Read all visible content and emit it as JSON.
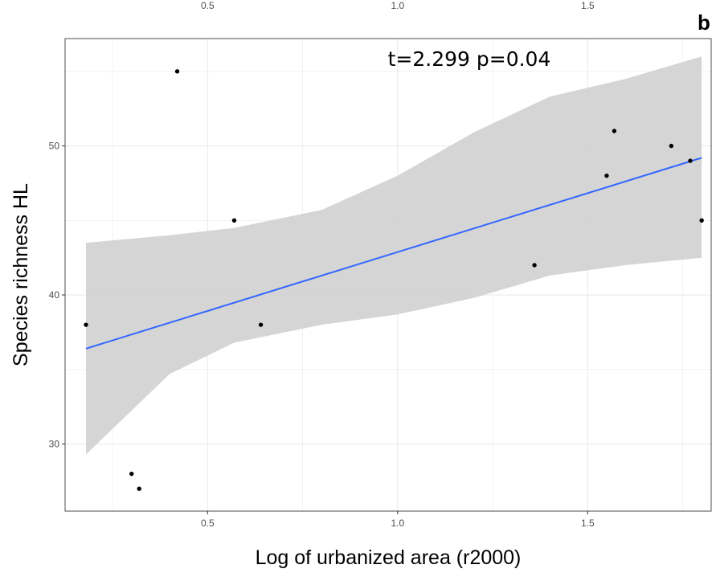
{
  "chart_data": {
    "type": "scatter",
    "panel_label": "b",
    "xlabel": "Log of urbanized area (r2000)",
    "ylabel": "Species richness HL",
    "annotation": "t=2.299  p=0.04",
    "xlim": [
      0.125,
      1.825
    ],
    "ylim": [
      25.5,
      57.2
    ],
    "x_ticks": [
      0.5,
      1.0,
      1.5
    ],
    "x_tick_labels": [
      "0.5",
      "1.0",
      "1.5"
    ],
    "y_ticks": [
      30,
      40,
      50
    ],
    "y_tick_labels": [
      "30",
      "40",
      "50"
    ],
    "grid": true,
    "points": [
      {
        "x": 0.18,
        "y": 38
      },
      {
        "x": 0.3,
        "y": 28
      },
      {
        "x": 0.32,
        "y": 27
      },
      {
        "x": 0.42,
        "y": 55
      },
      {
        "x": 0.57,
        "y": 45
      },
      {
        "x": 0.64,
        "y": 38
      },
      {
        "x": 1.36,
        "y": 42
      },
      {
        "x": 1.55,
        "y": 48
      },
      {
        "x": 1.57,
        "y": 51
      },
      {
        "x": 1.72,
        "y": 50
      },
      {
        "x": 1.77,
        "y": 49
      },
      {
        "x": 1.8,
        "y": 45
      }
    ],
    "fit_line": {
      "x": [
        0.18,
        1.8
      ],
      "y": [
        36.4,
        49.2
      ]
    },
    "confidence_band": {
      "x": [
        0.18,
        0.4,
        0.57,
        0.8,
        1.0,
        1.2,
        1.4,
        1.6,
        1.8
      ],
      "lower": [
        29.3,
        34.7,
        36.8,
        38.0,
        38.7,
        39.8,
        41.3,
        42.0,
        42.5
      ],
      "upper": [
        43.5,
        44.0,
        44.5,
        45.7,
        48.0,
        50.9,
        53.3,
        54.5,
        56.0
      ]
    },
    "colors": {
      "point": "#000000",
      "fit_line": "#3366ff",
      "band": "#d3d3d3",
      "grid": "#ebebeb",
      "panel_border": "#4d4d4d"
    }
  }
}
